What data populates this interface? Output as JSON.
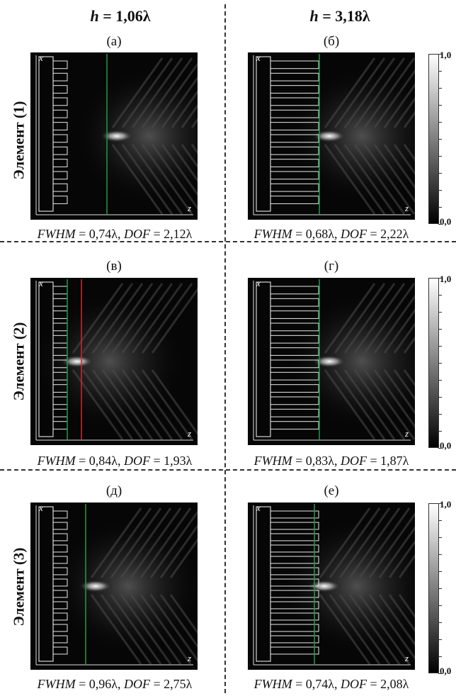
{
  "columns": [
    {
      "h_label": "h",
      "h_value": "= 1,06λ"
    },
    {
      "h_label": "h",
      "h_value": "= 3,18λ"
    }
  ],
  "rows": [
    {
      "label": "Элемент (1)",
      "panels": [
        {
          "letter": "(а)",
          "caption": {
            "fwhm_label": "FWHM",
            "fwhm_value": " = 0,74λ, ",
            "dof_label": "DOF",
            "dof_value": " = 2,12λ"
          }
        },
        {
          "letter": "(б)",
          "caption": {
            "fwhm_label": "FWHM",
            "fwhm_value": " = 0,68λ, ",
            "dof_label": "DOF",
            "dof_value": " = 2,22λ"
          }
        }
      ]
    },
    {
      "label": "Элемент (2)",
      "panels": [
        {
          "letter": "(в)",
          "caption": {
            "fwhm_label": "FWHM",
            "fwhm_value": " = 0,84λ, ",
            "dof_label": "DOF",
            "dof_value": " = 1,93λ"
          }
        },
        {
          "letter": "(г)",
          "caption": {
            "fwhm_label": "FWHM",
            "fwhm_value": " = 0,83λ, ",
            "dof_label": "DOF",
            "dof_value": " = 1,87λ"
          }
        }
      ]
    },
    {
      "label": "Элемент (3)",
      "panels": [
        {
          "letter": "(д)",
          "caption": {
            "fwhm_label": "FWHM",
            "fwhm_value": " = 0,96λ, ",
            "dof_label": "DOF",
            "dof_value": " = 2,75λ"
          }
        },
        {
          "letter": "(е)",
          "caption": {
            "fwhm_label": "FWHM",
            "fwhm_value": " = 0,74λ, ",
            "dof_label": "DOF",
            "dof_value": " = 2,08λ"
          }
        }
      ]
    }
  ],
  "axes": {
    "x": "x",
    "z": "z"
  },
  "colorbar": {
    "max": "1,0",
    "min": "0,0"
  },
  "colors": {
    "focus_line": "#1f9a4a",
    "red_line": "#e0202a",
    "outline": "#e8e8e8"
  }
}
